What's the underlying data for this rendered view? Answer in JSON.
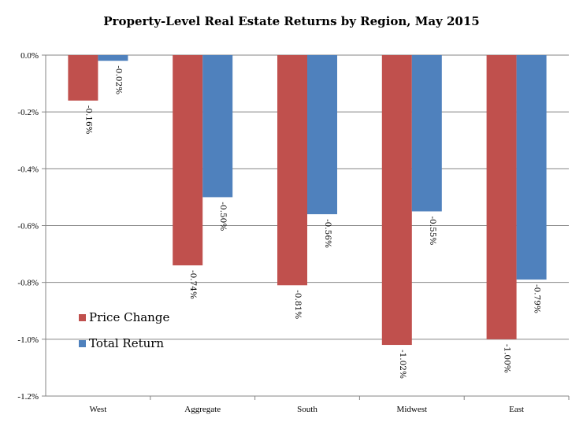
{
  "chart_data": {
    "type": "bar",
    "title": "Property-Level Real Estate Returns by Region, May 2015",
    "categories": [
      "West",
      "Aggregate",
      "South",
      "Midwest",
      "East"
    ],
    "series": [
      {
        "name": "Price Change",
        "color": "#C0504D",
        "values": [
          -0.16,
          -0.74,
          -0.81,
          -1.02,
          -1.0
        ],
        "labels": [
          "-0.16%",
          "-0.74%",
          "-0.81%",
          "-1.02%",
          "-1.00%"
        ]
      },
      {
        "name": "Total Return",
        "color": "#4F81BD",
        "values": [
          -0.02,
          -0.5,
          -0.56,
          -0.55,
          -0.79
        ],
        "labels": [
          "-0.02%",
          "-0.50%",
          "-0.56%",
          "-0.55%",
          "-0.79%"
        ]
      }
    ],
    "ylim": [
      -1.2,
      0.0
    ],
    "yticks": [
      0.0,
      -0.2,
      -0.4,
      -0.6,
      -0.8,
      -1.0,
      -1.2
    ],
    "ytick_labels": [
      "0.0%",
      "-0.2%",
      "-0.4%",
      "-0.6%",
      "-0.8%",
      "-1.0%",
      "-1.2%"
    ],
    "grid": true,
    "legend_position": "bottom-left"
  }
}
